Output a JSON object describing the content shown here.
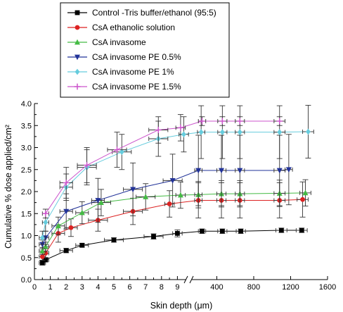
{
  "chart_data": {
    "type": "line",
    "title": "",
    "xlabel": "Skin depth (μm)",
    "ylabel": "Cumulative % dose applied/cm²",
    "x_axis": {
      "segment1": {
        "range": [
          0,
          10
        ],
        "ticks": [
          0,
          1,
          2,
          3,
          4,
          5,
          6,
          7,
          8,
          9
        ],
        "tick_labels": [
          "0",
          "1",
          "2",
          "3",
          "4",
          "5",
          "6",
          "7",
          "8",
          "9"
        ]
      },
      "segment2": {
        "range": [
          145,
          1600
        ],
        "ticks": [
          400,
          800,
          1200,
          1600
        ],
        "tick_labels": [
          "400",
          "800",
          "1200",
          "1600"
        ]
      },
      "broken": true
    },
    "ylim": [
      0,
      4.0
    ],
    "yticks": [
      0.0,
      0.5,
      1.0,
      1.5,
      2.0,
      2.5,
      3.0,
      3.5,
      4.0
    ],
    "ytick_labels": [
      "0.0",
      "0.5",
      "1.0",
      "1.5",
      "2.0",
      "2.5",
      "3.0",
      "3.5",
      "4.0"
    ],
    "grid": false,
    "legend_position": "top-left",
    "series": [
      {
        "name": "Control -Tris buffer/ethanol (95:5)",
        "color": "#000000",
        "marker": "square",
        "x": [
          0.5,
          0.7,
          2,
          3,
          5,
          7.5,
          9,
          240,
          460,
          660,
          1100,
          1320
        ],
        "y": [
          0.38,
          0.45,
          0.66,
          0.78,
          0.9,
          0.98,
          1.05,
          1.1,
          1.1,
          1.1,
          1.12,
          1.12
        ],
        "yerr": [
          0.05,
          0.05,
          0.05,
          0.04,
          0.05,
          0.06,
          0.08,
          0.05,
          0.05,
          0.05,
          0.05,
          0.05
        ],
        "xerr": [
          0.2,
          0.2,
          0.4,
          0.4,
          0.6,
          0.6,
          0.3,
          40,
          50,
          50,
          60,
          60
        ]
      },
      {
        "name": "CsA ethanolic solution",
        "color": "#dd2222",
        "marker": "circle",
        "x": [
          0.5,
          0.7,
          1.5,
          2.3,
          4,
          6.2,
          8.5,
          200,
          450,
          650,
          1080,
          1330
        ],
        "y": [
          0.52,
          0.6,
          1.05,
          1.18,
          1.35,
          1.55,
          1.72,
          1.8,
          1.8,
          1.8,
          1.8,
          1.82
        ],
        "yerr": [
          0.08,
          0.1,
          0.2,
          0.2,
          0.25,
          0.3,
          0.3,
          0.4,
          0.4,
          0.4,
          0.4,
          0.4
        ],
        "xerr": [
          0.2,
          0.2,
          0.4,
          0.4,
          0.6,
          0.6,
          0.3,
          40,
          50,
          50,
          60,
          60
        ]
      },
      {
        "name": "CsA invasome",
        "color": "#44bb44",
        "marker": "triangle-up",
        "x": [
          0.5,
          0.7,
          1.5,
          3,
          4.2,
          7,
          9.2,
          200,
          450,
          650,
          1080,
          1360
        ],
        "y": [
          0.65,
          0.75,
          1.22,
          1.52,
          1.75,
          1.88,
          1.92,
          1.93,
          1.95,
          1.95,
          1.96,
          1.97
        ],
        "yerr": [
          0.08,
          0.1,
          0.2,
          0.25,
          0.3,
          0.3,
          0.3,
          0.3,
          0.3,
          0.3,
          0.3,
          0.3
        ],
        "xerr": [
          0.2,
          0.2,
          0.4,
          0.4,
          0.6,
          0.6,
          0.3,
          40,
          50,
          50,
          60,
          60
        ]
      },
      {
        "name": "CsA invasome PE 0.5%",
        "color": "#223399",
        "marker": "triangle-down",
        "x": [
          0.5,
          0.7,
          2,
          4,
          6.2,
          8.7,
          200,
          450,
          650,
          1080,
          1180
        ],
        "y": [
          0.8,
          0.95,
          1.55,
          1.8,
          2.05,
          2.25,
          2.48,
          2.48,
          2.48,
          2.48,
          2.5
        ],
        "yerr": [
          0.1,
          0.15,
          0.4,
          0.5,
          0.6,
          0.6,
          0.8,
          0.8,
          0.8,
          0.8,
          0.8
        ],
        "xerr": [
          0.2,
          0.2,
          0.4,
          0.4,
          0.6,
          0.6,
          40,
          50,
          50,
          60,
          40
        ]
      },
      {
        "name": "CsA invasome PE 1%",
        "color": "#66ccdd",
        "marker": "diamond",
        "x": [
          0.5,
          0.7,
          2,
          3.3,
          5.5,
          7.8,
          9.4,
          230,
          460,
          650,
          1080,
          1390
        ],
        "y": [
          0.95,
          1.3,
          2.1,
          2.55,
          2.9,
          3.2,
          3.3,
          3.35,
          3.35,
          3.35,
          3.35,
          3.36
        ],
        "yerr": [
          0.15,
          0.2,
          0.3,
          0.4,
          0.4,
          0.4,
          0.4,
          0.6,
          0.6,
          0.6,
          0.6,
          0.6
        ],
        "xerr": [
          0.2,
          0.2,
          0.4,
          0.6,
          0.6,
          0.6,
          0.3,
          40,
          50,
          50,
          60,
          60
        ]
      },
      {
        "name": "CsA invasome PE 1.5%",
        "color": "#cc55cc",
        "marker": "plus",
        "x": [
          0.7,
          2,
          3.3,
          5.2,
          7.8,
          9.2,
          240,
          460,
          650,
          1080
        ],
        "y": [
          1.5,
          2.2,
          2.6,
          2.95,
          3.4,
          3.45,
          3.6,
          3.6,
          3.6,
          3.6
        ],
        "yerr": [
          0.1,
          0.35,
          0.4,
          0.4,
          0.3,
          0.3,
          0.1,
          0.1,
          0.1,
          0.1
        ],
        "xerr": [
          0.2,
          0.4,
          0.6,
          0.6,
          0.6,
          0.3,
          40,
          50,
          50,
          60
        ]
      }
    ]
  }
}
